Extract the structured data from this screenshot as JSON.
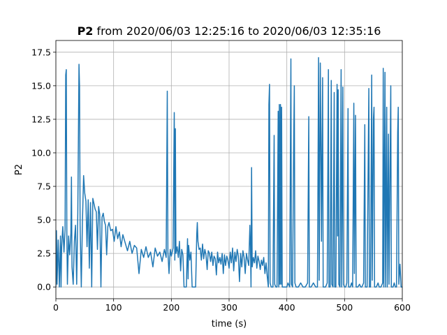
{
  "chart_data": {
    "type": "line",
    "title": {
      "bold": "P2",
      "rest": " from 2020/06/03 12:25:16 to 2020/06/03 12:35:16"
    },
    "xlabel": "time (s)",
    "ylabel": "P2",
    "xlim": [
      0,
      600
    ],
    "ylim": [
      -0.875,
      18.375
    ],
    "xticks": [
      0,
      100,
      200,
      300,
      400,
      500,
      600
    ],
    "yticks": [
      0.0,
      2.5,
      5.0,
      7.5,
      10.0,
      12.5,
      15.0,
      17.5
    ],
    "xtick_labels": [
      "0",
      "100",
      "200",
      "300",
      "400",
      "500",
      "600"
    ],
    "ytick_labels": [
      "0.0",
      "2.5",
      "5.0",
      "7.5",
      "10.0",
      "12.5",
      "15.0",
      "17.5"
    ],
    "grid": true,
    "series": [
      {
        "color": "#1f77b4",
        "points": [
          [
            0,
            0.0
          ],
          [
            1,
            4.2
          ],
          [
            2,
            0.2
          ],
          [
            4,
            3.5
          ],
          [
            6,
            0.0
          ],
          [
            8,
            3.8
          ],
          [
            9,
            0.0
          ],
          [
            10,
            3.0
          ],
          [
            12,
            4.5
          ],
          [
            14,
            2.6
          ],
          [
            16,
            4.3
          ],
          [
            17,
            15.8
          ],
          [
            18,
            16.2
          ],
          [
            19,
            4.0
          ],
          [
            20,
            0.2
          ],
          [
            22,
            3.8
          ],
          [
            24,
            2.4
          ],
          [
            26,
            4.0
          ],
          [
            27,
            8.2
          ],
          [
            28,
            1.5
          ],
          [
            30,
            0.2
          ],
          [
            32,
            3.4
          ],
          [
            34,
            4.6
          ],
          [
            36,
            0.2
          ],
          [
            38,
            5.5
          ],
          [
            40,
            16.6
          ],
          [
            41,
            14.9
          ],
          [
            42,
            4.6
          ],
          [
            44,
            0.0
          ],
          [
            46,
            4.8
          ],
          [
            48,
            8.3
          ],
          [
            50,
            7.0
          ],
          [
            52,
            6.4
          ],
          [
            54,
            3.0
          ],
          [
            56,
            6.5
          ],
          [
            58,
            1.4
          ],
          [
            60,
            6.3
          ],
          [
            62,
            0.0
          ],
          [
            64,
            6.6
          ],
          [
            66,
            6.2
          ],
          [
            68,
            5.8
          ],
          [
            70,
            5.6
          ],
          [
            72,
            2.8
          ],
          [
            74,
            6.0
          ],
          [
            76,
            5.4
          ],
          [
            78,
            0.0
          ],
          [
            80,
            5.2
          ],
          [
            82,
            5.5
          ],
          [
            84,
            4.9
          ],
          [
            86,
            4.6
          ],
          [
            88,
            2.4
          ],
          [
            90,
            4.5
          ],
          [
            92,
            4.8
          ],
          [
            95,
            4.2
          ],
          [
            98,
            4.3
          ],
          [
            101,
            3.4
          ],
          [
            104,
            4.5
          ],
          [
            107,
            3.6
          ],
          [
            110,
            4.1
          ],
          [
            113,
            3.0
          ],
          [
            116,
            3.9
          ],
          [
            120,
            3.3
          ],
          [
            124,
            2.7
          ],
          [
            128,
            3.4
          ],
          [
            132,
            2.5
          ],
          [
            136,
            3.1
          ],
          [
            140,
            2.9
          ],
          [
            144,
            1.0
          ],
          [
            148,
            2.8
          ],
          [
            152,
            2.2
          ],
          [
            156,
            3.0
          ],
          [
            160,
            2.2
          ],
          [
            164,
            2.6
          ],
          [
            168,
            1.5
          ],
          [
            172,
            2.9
          ],
          [
            176,
            2.3
          ],
          [
            180,
            2.6
          ],
          [
            184,
            1.9
          ],
          [
            188,
            2.8
          ],
          [
            191,
            2.2
          ],
          [
            193,
            14.6
          ],
          [
            194,
            2.6
          ],
          [
            196,
            1.0
          ],
          [
            198,
            2.8
          ],
          [
            200,
            2.3
          ],
          [
            203,
            2.9
          ],
          [
            205,
            13.0
          ],
          [
            206,
            2.0
          ],
          [
            207,
            11.8
          ],
          [
            208,
            2.5
          ],
          [
            210,
            3.0
          ],
          [
            212,
            2.2
          ],
          [
            214,
            3.4
          ],
          [
            216,
            1.2
          ],
          [
            218,
            2.8
          ],
          [
            220,
            2.4
          ],
          [
            222,
            0.0
          ],
          [
            224,
            0.0
          ],
          [
            226,
            0.0
          ],
          [
            228,
            3.6
          ],
          [
            229,
            0.6
          ],
          [
            230,
            3.1
          ],
          [
            232,
            2.0
          ],
          [
            234,
            2.6
          ],
          [
            236,
            0.0
          ],
          [
            238,
            0.0
          ],
          [
            240,
            0.0
          ],
          [
            242,
            0.0
          ],
          [
            244,
            3.9
          ],
          [
            245,
            4.8
          ],
          [
            246,
            3.4
          ],
          [
            248,
            2.8
          ],
          [
            250,
            2.9
          ],
          [
            252,
            2.0
          ],
          [
            254,
            3.2
          ],
          [
            256,
            2.1
          ],
          [
            258,
            2.8
          ],
          [
            260,
            2.4
          ],
          [
            262,
            1.3
          ],
          [
            264,
            2.7
          ],
          [
            266,
            2.5
          ],
          [
            268,
            1.9
          ],
          [
            270,
            2.6
          ],
          [
            272,
            1.6
          ],
          [
            274,
            2.3
          ],
          [
            276,
            2.1
          ],
          [
            278,
            0.9
          ],
          [
            280,
            2.6
          ],
          [
            282,
            1.8
          ],
          [
            284,
            2.2
          ],
          [
            286,
            1.7
          ],
          [
            288,
            2.5
          ],
          [
            290,
            1.0
          ],
          [
            292,
            2.4
          ],
          [
            294,
            1.6
          ],
          [
            296,
            2.3
          ],
          [
            298,
            2.0
          ],
          [
            300,
            1.4
          ],
          [
            302,
            2.6
          ],
          [
            304,
            1.8
          ],
          [
            306,
            2.9
          ],
          [
            308,
            1.2
          ],
          [
            310,
            2.6
          ],
          [
            312,
            1.9
          ],
          [
            314,
            2.8
          ],
          [
            316,
            2.3
          ],
          [
            318,
            0.4
          ],
          [
            320,
            2.5
          ],
          [
            322,
            1.5
          ],
          [
            324,
            2.7
          ],
          [
            326,
            2.2
          ],
          [
            328,
            1.0
          ],
          [
            330,
            2.5
          ],
          [
            332,
            2.0
          ],
          [
            334,
            1.6
          ],
          [
            336,
            4.6
          ],
          [
            337,
            3.0
          ],
          [
            338,
            0.0
          ],
          [
            339,
            8.9
          ],
          [
            340,
            1.5
          ],
          [
            342,
            2.2
          ],
          [
            344,
            1.8
          ],
          [
            346,
            2.7
          ],
          [
            348,
            1.4
          ],
          [
            350,
            2.3
          ],
          [
            352,
            1.9
          ],
          [
            354,
            1.3
          ],
          [
            356,
            2.0
          ],
          [
            358,
            1.6
          ],
          [
            360,
            2.2
          ],
          [
            362,
            1.0
          ],
          [
            364,
            1.8
          ],
          [
            366,
            0.8
          ],
          [
            368,
            0.0
          ],
          [
            369,
            13.6
          ],
          [
            370,
            15.1
          ],
          [
            371,
            0.3
          ],
          [
            373,
            0.0
          ],
          [
            376,
            0.0
          ],
          [
            378,
            11.3
          ],
          [
            379,
            0.2
          ],
          [
            381,
            0.0
          ],
          [
            383,
            0.0
          ],
          [
            385,
            13.1
          ],
          [
            386,
            0.0
          ],
          [
            387,
            13.6
          ],
          [
            388,
            0.2
          ],
          [
            389,
            13.6
          ],
          [
            390,
            0.2
          ],
          [
            391,
            13.4
          ],
          [
            392,
            0.0
          ],
          [
            395,
            0.0
          ],
          [
            398,
            0.0
          ],
          [
            400,
            0.0
          ],
          [
            402,
            0.3
          ],
          [
            405,
            0.0
          ],
          [
            407,
            17.0
          ],
          [
            408,
            0.2
          ],
          [
            410,
            0.0
          ],
          [
            412,
            11.3
          ],
          [
            413,
            15.0
          ],
          [
            414,
            0.3
          ],
          [
            416,
            0.0
          ],
          [
            420,
            0.0
          ],
          [
            424,
            0.3
          ],
          [
            428,
            0.0
          ],
          [
            432,
            0.0
          ],
          [
            436,
            0.3
          ],
          [
            438,
            12.7
          ],
          [
            439,
            0.0
          ],
          [
            442,
            0.0
          ],
          [
            446,
            0.3
          ],
          [
            450,
            0.0
          ],
          [
            453,
            0.0
          ],
          [
            455,
            17.1
          ],
          [
            456,
            0.5
          ],
          [
            458,
            16.7
          ],
          [
            459,
            11.4
          ],
          [
            460,
            3.4
          ],
          [
            462,
            15.6
          ],
          [
            463,
            0.0
          ],
          [
            465,
            0.0
          ],
          [
            467,
            0.0
          ],
          [
            470,
            0.3
          ],
          [
            472,
            16.2
          ],
          [
            473,
            0.0
          ],
          [
            475,
            0.0
          ],
          [
            477,
            15.4
          ],
          [
            478,
            0.2
          ],
          [
            480,
            0.0
          ],
          [
            482,
            14.5
          ],
          [
            483,
            0.0
          ],
          [
            485,
            0.0
          ],
          [
            487,
            15.1
          ],
          [
            488,
            3.8
          ],
          [
            489,
            14.7
          ],
          [
            490,
            0.2
          ],
          [
            492,
            0.0
          ],
          [
            494,
            16.2
          ],
          [
            495,
            0.0
          ],
          [
            497,
            14.9
          ],
          [
            498,
            0.2
          ],
          [
            500,
            0.0
          ],
          [
            502,
            0.0
          ],
          [
            504,
            0.3
          ],
          [
            506,
            13.3
          ],
          [
            507,
            0.0
          ],
          [
            510,
            0.0
          ],
          [
            512,
            0.3
          ],
          [
            514,
            0.0
          ],
          [
            516,
            13.7
          ],
          [
            517,
            1.0
          ],
          [
            519,
            12.8
          ],
          [
            520,
            0.0
          ],
          [
            523,
            0.0
          ],
          [
            526,
            0.2
          ],
          [
            528,
            0.0
          ],
          [
            530,
            0.0
          ],
          [
            533,
            0.3
          ],
          [
            535,
            12.1
          ],
          [
            536,
            0.0
          ],
          [
            539,
            0.0
          ],
          [
            542,
            14.8
          ],
          [
            543,
            0.0
          ],
          [
            545,
            0.0
          ],
          [
            547,
            15.8
          ],
          [
            548,
            0.5
          ],
          [
            550,
            12.6
          ],
          [
            551,
            13.4
          ],
          [
            552,
            0.0
          ],
          [
            555,
            0.0
          ],
          [
            558,
            0.3
          ],
          [
            560,
            0.0
          ],
          [
            563,
            0.0
          ],
          [
            566,
            0.3
          ],
          [
            567,
            16.3
          ],
          [
            568,
            0.0
          ],
          [
            570,
            16.0
          ],
          [
            571,
            0.0
          ],
          [
            573,
            13.4
          ],
          [
            574,
            0.0
          ],
          [
            576,
            11.4
          ],
          [
            577,
            0.2
          ],
          [
            580,
            15.0
          ],
          [
            581,
            0.0
          ],
          [
            584,
            0.0
          ],
          [
            586,
            0.3
          ],
          [
            588,
            0.0
          ],
          [
            590,
            0.0
          ],
          [
            592,
            11.5
          ],
          [
            593,
            13.4
          ],
          [
            594,
            0.2
          ],
          [
            596,
            1.7
          ],
          [
            598,
            0.0
          ],
          [
            600,
            0.0
          ]
        ]
      }
    ]
  }
}
